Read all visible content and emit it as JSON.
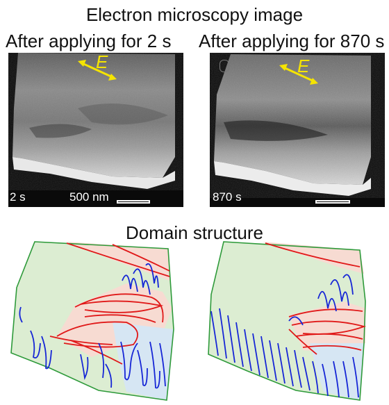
{
  "header": {
    "title": "Electron microscopy image",
    "left_subtitle": "After applying for 2 s",
    "right_subtitle": "After applying for 870 s"
  },
  "micrographs": [
    {
      "time_label": "2 s",
      "scale_label": "500 nm",
      "field_label": "E"
    },
    {
      "time_label": "870 s",
      "field_label": "E"
    }
  ],
  "domain_section": {
    "title": "Domain structure"
  },
  "colors": {
    "field_arrow": "#f5e400",
    "outline": "#2e9a3a",
    "green_domain": "#dcedd2",
    "red_domain": "#f7dbd2",
    "blue_domain": "#d6e6f3",
    "red_wall": "#e01818",
    "blue_wall": "#1626d6"
  }
}
